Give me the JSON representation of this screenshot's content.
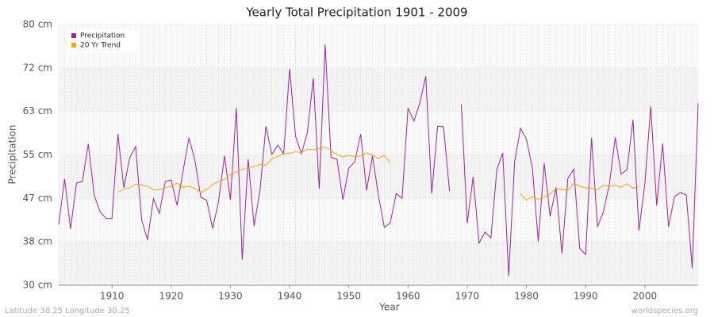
{
  "chart_data": {
    "type": "line",
    "title": "Yearly Total Precipitation 1901 - 2009",
    "x_label": "Year",
    "y_label": "Precipitation",
    "footer_left": "Latitude 38.25 Longitude 30.25",
    "footer_right": "worldspecies.org",
    "legend": "upper left",
    "grid": true,
    "xlim": [
      1901,
      2009
    ],
    "xticks": [
      1910,
      1920,
      1930,
      1940,
      1950,
      1960,
      1970,
      1980,
      1990,
      2000
    ],
    "ylim": [
      30,
      80
    ],
    "yticks": [
      {
        "value": 30,
        "label": "30 cm"
      },
      {
        "value": 38.33,
        "label": "38 cm"
      },
      {
        "value": 46.67,
        "label": "47 cm"
      },
      {
        "value": 55,
        "label": "55 cm"
      },
      {
        "value": 63.33,
        "label": "63 cm"
      },
      {
        "value": 71.67,
        "label": "72 cm"
      },
      {
        "value": 80,
        "label": "80 cm"
      }
    ],
    "x": [
      1901,
      1902,
      1903,
      1904,
      1905,
      1906,
      1907,
      1908,
      1909,
      1910,
      1911,
      1912,
      1913,
      1914,
      1915,
      1916,
      1917,
      1918,
      1919,
      1920,
      1921,
      1922,
      1923,
      1924,
      1925,
      1926,
      1927,
      1928,
      1929,
      1930,
      1931,
      1932,
      1933,
      1934,
      1935,
      1936,
      1937,
      1938,
      1939,
      1940,
      1941,
      1942,
      1943,
      1944,
      1945,
      1946,
      1947,
      1948,
      1949,
      1950,
      1951,
      1952,
      1953,
      1954,
      1955,
      1956,
      1957,
      1958,
      1959,
      1960,
      1961,
      1962,
      1963,
      1964,
      1965,
      1966,
      1967,
      1968,
      1969,
      1970,
      1971,
      1972,
      1973,
      1974,
      1975,
      1976,
      1977,
      1978,
      1979,
      1980,
      1981,
      1982,
      1983,
      1984,
      1985,
      1986,
      1987,
      1988,
      1989,
      1990,
      1991,
      1992,
      1993,
      1994,
      1995,
      1996,
      1997,
      1998,
      1999,
      2000,
      2001,
      2002,
      2003,
      2004,
      2005,
      2006,
      2007,
      2008,
      2009
    ],
    "series": [
      {
        "name": "Precipitation",
        "color": "#a020a0",
        "values": [
          41.7,
          50.4,
          40.8,
          49.6,
          49.9,
          57.1,
          47.2,
          44.1,
          42.8,
          42.8,
          59.0,
          48.7,
          54.5,
          56.6,
          42.6,
          38.7,
          46.6,
          43.8,
          49.9,
          50.2,
          45.3,
          51.9,
          58.3,
          54.0,
          46.9,
          46.3,
          40.9,
          46.1,
          54.8,
          46.4,
          64.0,
          34.9,
          54.2,
          41.4,
          48.2,
          60.5,
          55.1,
          56.9,
          55.2,
          71.5,
          58.6,
          55.2,
          59.3,
          69.7,
          48.5,
          76.2,
          54.5,
          54.2,
          46.4,
          52.5,
          53.7,
          59.0,
          48.2,
          54.8,
          47.2,
          41.1,
          42.0,
          47.6,
          46.7,
          64.0,
          61.5,
          65.0,
          70.1,
          47.6,
          60.5,
          60.4,
          48.1,
          null,
          64.7,
          41.9,
          50.8,
          38.1,
          40.2,
          39.1,
          52.2,
          55.4,
          31.8,
          53.6,
          60.1,
          58.0,
          52.5,
          38.4,
          53.4,
          43.2,
          48.8,
          36.1,
          50.5,
          52.3,
          37.1,
          35.9,
          58.3,
          41.2,
          44.1,
          49.3,
          58.4,
          51.3,
          52.2,
          61.8,
          40.5,
          49.5,
          64.3,
          45.3,
          57.2,
          41.2,
          47.0,
          47.8,
          47.3,
          33.3,
          64.9
        ]
      },
      {
        "name": "20 Yr Trend",
        "color": "#ffa500",
        "values": [
          null,
          null,
          null,
          null,
          null,
          null,
          null,
          null,
          null,
          null,
          47.9,
          48.4,
          48.7,
          49.4,
          49.2,
          49.0,
          48.3,
          48.3,
          48.7,
          49.0,
          49.6,
          48.8,
          49.0,
          48.6,
          47.8,
          48.4,
          49.3,
          49.9,
          50.3,
          51.2,
          51.8,
          52.2,
          52.5,
          52.8,
          53.2,
          53.0,
          54.3,
          54.7,
          55.3,
          55.3,
          55.6,
          55.4,
          56.1,
          56.0,
          56.2,
          56.5,
          55.8,
          55.1,
          54.6,
          54.9,
          54.7,
          54.8,
          55.4,
          55.0,
          54.3,
          54.9,
          53.5,
          null,
          null,
          null,
          null,
          null,
          null,
          null,
          null,
          null,
          null,
          null,
          null,
          null,
          null,
          null,
          null,
          null,
          null,
          null,
          null,
          null,
          47.6,
          46.3,
          47.0,
          46.5,
          47.0,
          47.5,
          48.5,
          48.4,
          48.2,
          49.6,
          49.0,
          48.7,
          48.6,
          48.3,
          49.2,
          49.0,
          49.2,
          48.8,
          49.5,
          48.6,
          49.1,
          null,
          null,
          null,
          null,
          null,
          null,
          null,
          null,
          null,
          null
        ]
      }
    ]
  }
}
